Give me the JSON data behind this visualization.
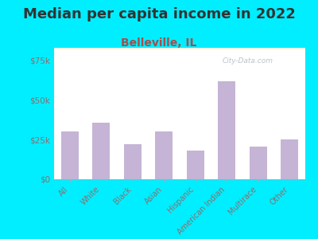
{
  "title": "Median per capita income in 2022",
  "subtitle": "Belleville, IL",
  "categories": [
    "All",
    "White",
    "Black",
    "Asian",
    "Hispanic",
    "American Indian",
    "Multirace",
    "Other"
  ],
  "values": [
    30000,
    35500,
    22000,
    30000,
    18000,
    62000,
    20500,
    25000
  ],
  "bar_color": "#c5b4d5",
  "background_outer": "#00eeff",
  "background_inner_top": "#f0faf0",
  "background_inner_bottom": "#e8f5e0",
  "title_fontsize": 13,
  "subtitle_fontsize": 10,
  "subtitle_color": "#a05050",
  "tick_label_color": "#887070",
  "ylim": [
    0,
    83000
  ],
  "yticks": [
    0,
    25000,
    50000,
    75000
  ],
  "ytick_labels": [
    "$0",
    "$25k",
    "$50k",
    "$75k"
  ],
  "watermark": "City-Data.com"
}
